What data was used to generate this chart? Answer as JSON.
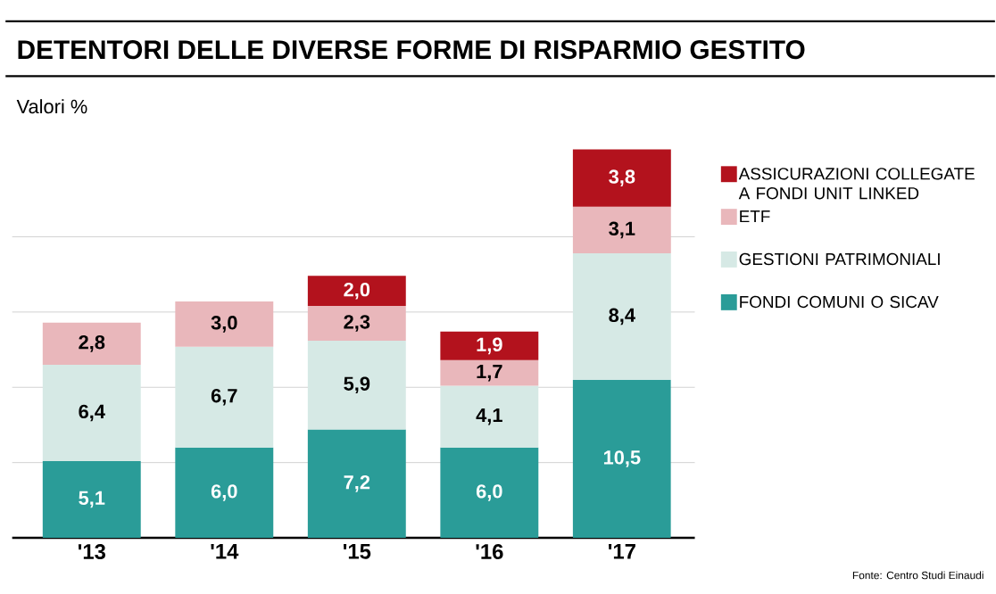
{
  "chart_data": {
    "type": "bar",
    "title": "DETENTORI DELLE DIVERSE FORME DI RISPARMIO GESTITO",
    "subtitle": "Valori %",
    "categories": [
      "'13",
      "'14",
      "'15",
      "'16",
      "'17"
    ],
    "stacked": true,
    "series": [
      {
        "name": "FONDI COMUNI O SICAV",
        "color": "#2a9c98",
        "values": [
          5.1,
          6.0,
          7.2,
          6.0,
          10.5
        ],
        "value_labels": [
          "5,1",
          "6,0",
          "7,2",
          "6,0",
          "10,5"
        ]
      },
      {
        "name": "GESTIONI PATRIMONIALI",
        "color": "#d6e9e5",
        "values": [
          6.4,
          6.7,
          5.9,
          4.1,
          8.4
        ],
        "value_labels": [
          "6,4",
          "6,7",
          "5,9",
          "4,1",
          "8,4"
        ]
      },
      {
        "name": "ETF",
        "color": "#e9b7bb",
        "values": [
          2.8,
          3.0,
          2.3,
          1.7,
          3.1
        ],
        "value_labels": [
          "2,8",
          "3,0",
          "2,3",
          "1,7",
          "3,1"
        ]
      },
      {
        "name": "ASSICURAZIONI COLLEGATE A FONDI UNIT LINKED",
        "color": "#b3121d",
        "values": [
          null,
          null,
          2.0,
          1.9,
          3.8
        ],
        "value_labels": [
          null,
          null,
          "2,0",
          "1,9",
          "3,8"
        ]
      }
    ],
    "yticks": [
      {
        "value": 5,
        "label": null
      },
      {
        "value": 10,
        "label": null
      },
      {
        "value": 15,
        "label": null
      },
      {
        "value": 20,
        "label": null
      }
    ],
    "grid": "y",
    "tick_labels": "x",
    "legend": "right",
    "annotations": [
      "Fonte: Centro Studi Einaudi"
    ]
  }
}
